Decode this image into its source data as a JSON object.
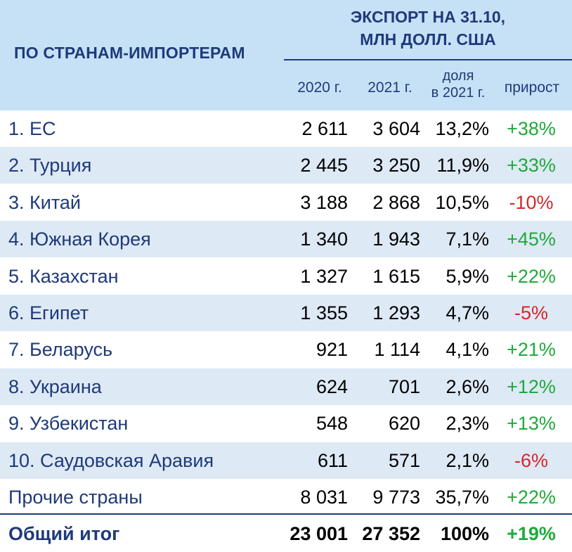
{
  "header": {
    "row_label": "ПО СТРАНАМ-ИМПОРТЕРАМ",
    "export_title_line1": "ЭКСПОРТ НА 31.10,",
    "export_title_line2": "МЛН ДОЛЛ. США",
    "col_2020": "2020 г.",
    "col_2021": "2021 г.",
    "col_share_line1": "доля",
    "col_share_line2": "в 2021 г.",
    "col_growth": "прирост"
  },
  "colors": {
    "header_bg": "#c6e0f5",
    "alt_row_bg": "#dde9f5",
    "title_blue": "#1f3a7a",
    "growth_positive": "#1faa3a",
    "growth_negative": "#d8262a"
  },
  "chart_data": {
    "type": "table",
    "columns": [
      "ПО СТРАНАМ-ИМПОРТЕРАМ",
      "2020 г.",
      "2021 г.",
      "доля в 2021 г.",
      "прирост"
    ],
    "rows": [
      {
        "name": "1. ЕС",
        "v2020": "2 611",
        "v2021": "3 604",
        "share": "13,2%",
        "growth": "+38%"
      },
      {
        "name": "2. Турция",
        "v2020": "2 445",
        "v2021": "3 250",
        "share": "11,9%",
        "growth": "+33%"
      },
      {
        "name": "3. Китай",
        "v2020": "3 188",
        "v2021": "2 868",
        "share": "10,5%",
        "growth": "-10%"
      },
      {
        "name": "4. Южная Корея",
        "v2020": "1 340",
        "v2021": "1 943",
        "share": "7,1%",
        "growth": "+45%"
      },
      {
        "name": "5. Казахстан",
        "v2020": "1 327",
        "v2021": "1 615",
        "share": "5,9%",
        "growth": "+22%"
      },
      {
        "name": "6. Египет",
        "v2020": "1 355",
        "v2021": "1 293",
        "share": "4,7%",
        "growth": "-5%"
      },
      {
        "name": "7. Беларусь",
        "v2020": "921",
        "v2021": "1 114",
        "share": "4,1%",
        "growth": "+21%"
      },
      {
        "name": "8. Украина",
        "v2020": "624",
        "v2021": "701",
        "share": "2,6%",
        "growth": "+12%"
      },
      {
        "name": "9. Узбекистан",
        "v2020": "548",
        "v2021": "620",
        "share": "2,3%",
        "growth": "+13%"
      },
      {
        "name": "10. Саудовская Аравия",
        "v2020": "611",
        "v2021": "571",
        "share": "2,1%",
        "growth": "-6%"
      },
      {
        "name": "Прочие страны",
        "v2020": "8 031",
        "v2021": "9 773",
        "share": "35,7%",
        "growth": "+22%"
      }
    ],
    "total": {
      "name": "Общий итог",
      "v2020": "23 001",
      "v2021": "27 352",
      "share": "100%",
      "growth": "+19%"
    }
  }
}
